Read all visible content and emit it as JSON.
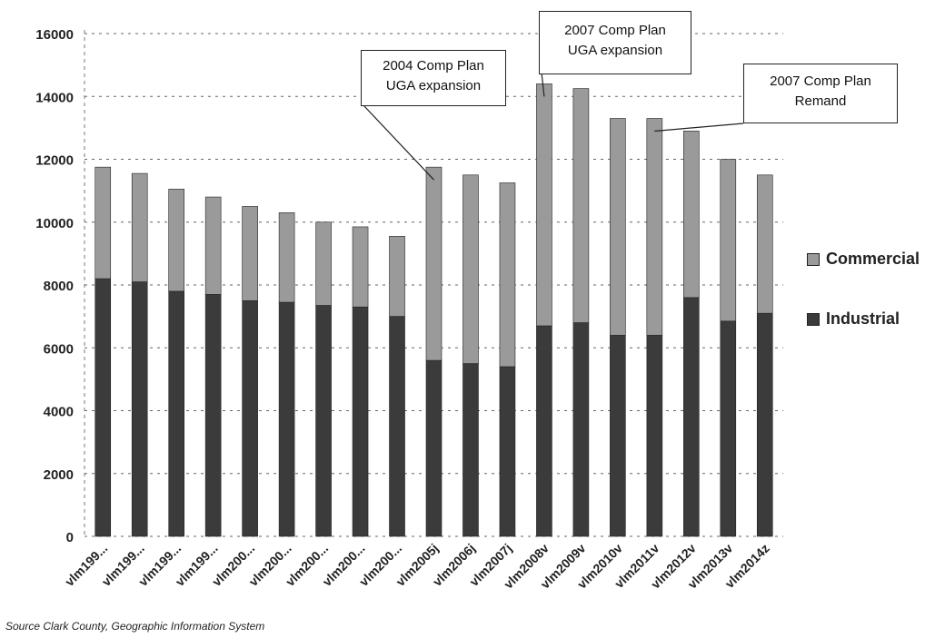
{
  "chart_data": {
    "type": "bar",
    "stacked": true,
    "categories": [
      "vlm199...",
      "vlm199...",
      "vlm199...",
      "vlm199...",
      "vlm200...",
      "vlm200...",
      "vlm200...",
      "vlm200...",
      "vlm200...",
      "vlm2005j",
      "vlm2006j",
      "vlm2007j",
      "vlm2008v",
      "vlm2009v",
      "vlm2010v",
      "vlm2011v",
      "vlm2012v",
      "vlm2013v",
      "vlm2014z"
    ],
    "series": [
      {
        "name": "Industrial",
        "color": "#3b3b3b",
        "values": [
          8200,
          8100,
          7800,
          7700,
          7500,
          7450,
          7350,
          7300,
          7000,
          5600,
          5500,
          5400,
          6700,
          6800,
          6400,
          6400,
          7600,
          6850,
          7100
        ]
      },
      {
        "name": "Commercial",
        "color": "#9a9a9a",
        "values": [
          3550,
          3450,
          3250,
          3100,
          3000,
          2850,
          2650,
          2550,
          2550,
          6150,
          6000,
          5850,
          7700,
          7450,
          6900,
          6900,
          5300,
          5150,
          4400
        ]
      }
    ],
    "ylim": [
      0,
      16000
    ],
    "yticks": [
      "0",
      "2000",
      "4000",
      "6000",
      "8000",
      "10000",
      "12000",
      "14000",
      "16000"
    ],
    "grid": true,
    "legend_position": "right",
    "annotations": [
      {
        "lines": [
          "2004 Comp Plan",
          "UGA expansion"
        ],
        "target_index": 9
      },
      {
        "lines": [
          "2007 Comp Plan",
          "UGA expansion"
        ],
        "target_index": 12
      },
      {
        "lines": [
          "2007 Comp Plan",
          "Remand"
        ],
        "target_index": 15
      }
    ],
    "source": "Source  Clark County, Geographic Information System"
  }
}
